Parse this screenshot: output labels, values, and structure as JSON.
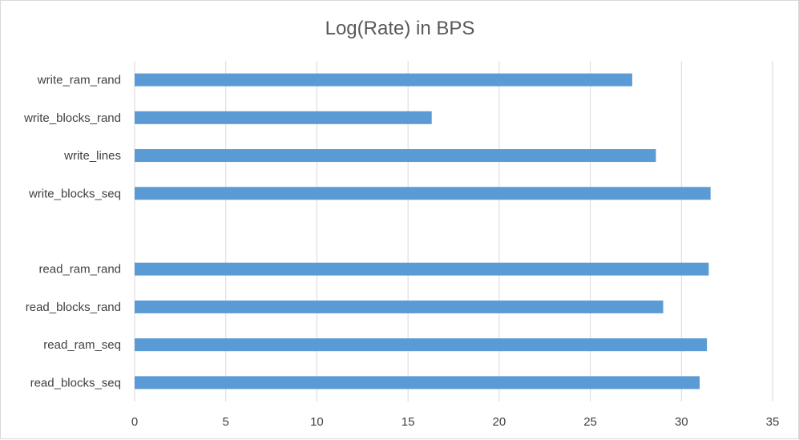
{
  "chart_data": {
    "type": "bar",
    "orientation": "horizontal",
    "title": "Log(Rate) in BPS",
    "xlabel": "",
    "ylabel": "",
    "xlim": [
      0,
      35
    ],
    "x_ticks": [
      0,
      5,
      10,
      15,
      20,
      25,
      30,
      35
    ],
    "grid": "vertical",
    "legend": "none",
    "bar_color": "#5b9bd5",
    "categories": [
      "write_ram_rand",
      "write_blocks_rand",
      "write_lines",
      "write_blocks_seq",
      "",
      "read_ram_rand",
      "read_blocks_rand",
      "read_ram_seq",
      "read_blocks_seq"
    ],
    "values": [
      27.3,
      16.3,
      28.6,
      31.6,
      null,
      31.5,
      29.0,
      31.4,
      31.0
    ]
  }
}
